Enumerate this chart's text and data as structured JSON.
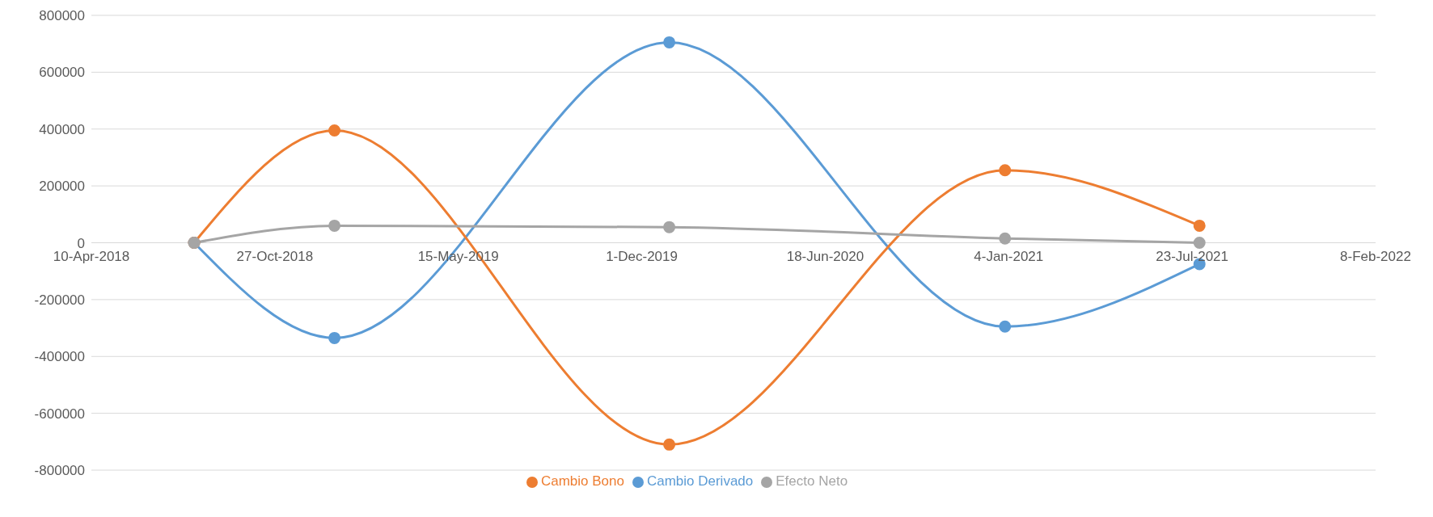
{
  "chart_data": {
    "type": "line",
    "x": [
      "2018-07-31",
      "2018-12-31",
      "2019-12-31",
      "2020-12-31",
      "2021-07-31"
    ],
    "series": [
      {
        "name": "Cambio Derivado",
        "color": "#5b9bd5",
        "values": [
          0,
          -335000,
          705000,
          -295000,
          -75000
        ]
      },
      {
        "name": "Cambio Bono",
        "color": "#ed7d31",
        "values": [
          0,
          395000,
          -710000,
          255000,
          60000
        ]
      },
      {
        "name": "Efecto Neto",
        "color": "#a5a5a5",
        "values": [
          0,
          60000,
          55000,
          15000,
          0
        ]
      }
    ],
    "xlim": [
      "2018-04-10",
      "2022-02-08"
    ],
    "xticks": [
      {
        "value": "2018-04-10",
        "label": "10-Apr-2018"
      },
      {
        "value": "2018-10-27",
        "label": "27-Oct-2018"
      },
      {
        "value": "2019-05-15",
        "label": "15-May-2019"
      },
      {
        "value": "2019-12-01",
        "label": "1-Dec-2019"
      },
      {
        "value": "2020-06-18",
        "label": "18-Jun-2020"
      },
      {
        "value": "2021-01-04",
        "label": "4-Jan-2021"
      },
      {
        "value": "2021-07-23",
        "label": "23-Jul-2021"
      },
      {
        "value": "2022-02-08",
        "label": "8-Feb-2022"
      }
    ],
    "ylim": [
      -800000,
      800000
    ],
    "yticks": [
      -800000,
      -600000,
      -400000,
      -200000,
      0,
      200000,
      400000,
      600000,
      800000
    ],
    "grid": "y",
    "legend": "bottom",
    "marker": "circle",
    "line_style": "solid"
  }
}
